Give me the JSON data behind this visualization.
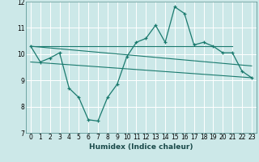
{
  "xlabel": "Humidex (Indice chaleur)",
  "bg_color": "#cce8e8",
  "grid_color": "#ffffff",
  "line_color": "#1a7a6e",
  "xlim": [
    -0.5,
    23.5
  ],
  "ylim": [
    7,
    12
  ],
  "yticks": [
    7,
    8,
    9,
    10,
    11,
    12
  ],
  "xticks": [
    0,
    1,
    2,
    3,
    4,
    5,
    6,
    7,
    8,
    9,
    10,
    11,
    12,
    13,
    14,
    15,
    16,
    17,
    18,
    19,
    20,
    21,
    22,
    23
  ],
  "series": [
    {
      "x": [
        0,
        1,
        2,
        3,
        4,
        5,
        6,
        7,
        8,
        9,
        10,
        11,
        12,
        13,
        14,
        15,
        16,
        17,
        18,
        19,
        20,
        21,
        22,
        23
      ],
      "y": [
        10.3,
        9.7,
        9.85,
        10.05,
        8.7,
        8.35,
        7.5,
        7.45,
        8.35,
        8.85,
        9.9,
        10.45,
        10.6,
        11.1,
        10.45,
        11.8,
        11.55,
        10.35,
        10.45,
        10.3,
        10.05,
        10.05,
        9.35,
        9.1
      ],
      "marker": true
    },
    {
      "x": [
        0,
        21
      ],
      "y": [
        10.3,
        10.3
      ],
      "marker": false
    },
    {
      "x": [
        0,
        23
      ],
      "y": [
        10.3,
        9.55
      ],
      "marker": false
    },
    {
      "x": [
        0,
        23
      ],
      "y": [
        9.7,
        9.1
      ],
      "marker": false
    }
  ]
}
